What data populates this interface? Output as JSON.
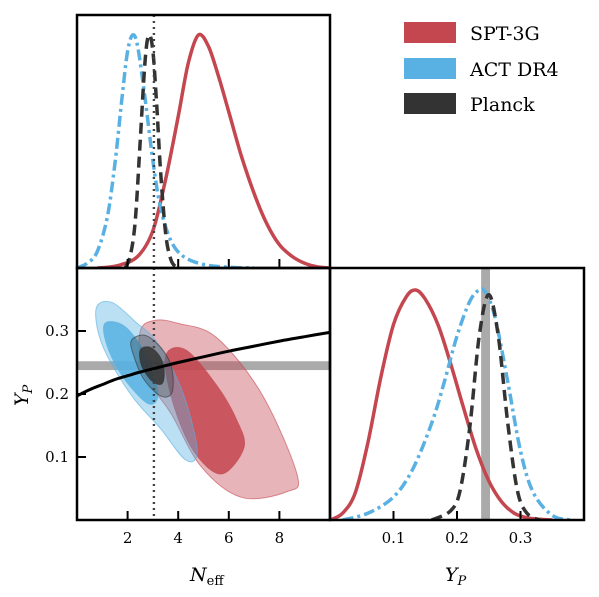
{
  "colors": {
    "spt": "#c4464f",
    "act": "#58b1e2",
    "planck": "#333333",
    "band": "#aaaaaa",
    "bbn": "#000000"
  },
  "legend": {
    "location": "top-right",
    "entries": [
      {
        "label": "SPT-3G",
        "color": "#c4464f"
      },
      {
        "label": "ACT DR4",
        "color": "#58b1e2"
      },
      {
        "label": "Planck",
        "color": "#333333"
      }
    ]
  },
  "chart_data": [
    {
      "panel": "top-left",
      "type": "line",
      "title": "",
      "xlabel": "",
      "ylabel": "",
      "xlim": [
        0,
        10
      ],
      "ylim": [
        0,
        1.05
      ],
      "x_ticks": [
        2,
        4,
        6,
        8
      ],
      "x_tick_labels_shown": false,
      "reference_line": {
        "x": 3.04,
        "style": "dotted"
      },
      "series": [
        {
          "name": "SPT-3G",
          "style": "solid",
          "color": "#c4464f",
          "x": [
            0.8,
            1.6,
            2.4,
            3.0,
            3.5,
            4.0,
            4.4,
            4.8,
            5.2,
            5.6,
            6.0,
            6.5,
            7.0,
            7.5,
            8.0,
            8.5,
            9.0,
            9.5,
            10.0
          ],
          "y": [
            0.0,
            0.01,
            0.05,
            0.16,
            0.38,
            0.65,
            0.88,
            1.0,
            0.95,
            0.82,
            0.67,
            0.48,
            0.32,
            0.19,
            0.1,
            0.05,
            0.02,
            0.005,
            0.0
          ]
        },
        {
          "name": "ACT DR4",
          "style": "dash-dot",
          "color": "#58b1e2",
          "x": [
            0.0,
            0.4,
            0.8,
            1.2,
            1.5,
            1.8,
            2.0,
            2.2,
            2.4,
            2.7,
            3.0,
            3.3,
            3.7,
            4.2,
            5.0,
            6.0,
            7.0
          ],
          "y": [
            0.0,
            0.02,
            0.07,
            0.22,
            0.45,
            0.75,
            0.93,
            1.0,
            0.95,
            0.72,
            0.46,
            0.26,
            0.12,
            0.05,
            0.015,
            0.003,
            0.0
          ]
        },
        {
          "name": "Planck",
          "style": "dashed",
          "color": "#333333",
          "x": [
            1.9,
            2.1,
            2.3,
            2.5,
            2.7,
            2.85,
            3.0,
            3.15,
            3.3,
            3.5,
            3.7,
            3.9,
            4.1
          ],
          "y": [
            0.0,
            0.05,
            0.2,
            0.55,
            0.9,
            1.0,
            0.93,
            0.7,
            0.42,
            0.15,
            0.04,
            0.005,
            0.0
          ]
        }
      ]
    },
    {
      "panel": "bottom-left",
      "type": "contour",
      "title": "",
      "xlabel": "N_eff",
      "xlabel_main": "N",
      "xlabel_sub": "eff",
      "ylabel": "Y_P",
      "ylabel_main": "Y",
      "ylabel_sub": "P",
      "xlim": [
        0,
        10
      ],
      "ylim": [
        0,
        0.4
      ],
      "x_ticks": [
        2,
        4,
        6,
        8
      ],
      "x_tick_labels": [
        "2",
        "4",
        "6",
        "8"
      ],
      "y_ticks": [
        0.1,
        0.2,
        0.3
      ],
      "y_tick_labels": [
        "0.1",
        "0.2",
        "0.3"
      ],
      "reference_line": {
        "x": 3.04,
        "style": "dotted"
      },
      "horizontal_band": {
        "y": 0.245,
        "half_width": 0.007
      },
      "bbn_curve": {
        "x": [
          0.0,
          0.5,
          1.0,
          1.5,
          2.0,
          2.5,
          3.0,
          3.5,
          4.0,
          5.0,
          6.0,
          7.0,
          8.0,
          9.0,
          10.0
        ],
        "y": [
          0.197,
          0.207,
          0.215,
          0.223,
          0.229,
          0.235,
          0.24,
          0.245,
          0.25,
          0.259,
          0.268,
          0.276,
          0.284,
          0.291,
          0.298
        ]
      },
      "contours": [
        {
          "name": "SPT-3G",
          "level": "95%",
          "color": "#c4464f",
          "opacity": 0.4,
          "x": [
            2.5,
            3.1,
            4.0,
            5.5,
            7.3,
            8.7,
            8.3,
            6.5,
            4.9,
            3.7,
            2.6
          ],
          "y": [
            0.3,
            0.317,
            0.312,
            0.29,
            0.2,
            0.072,
            0.045,
            0.036,
            0.085,
            0.17,
            0.235
          ]
        },
        {
          "name": "SPT-3G",
          "level": "68%",
          "color": "#c4464f",
          "opacity": 0.85,
          "x": [
            3.5,
            4.3,
            5.5,
            6.3,
            6.6,
            5.7,
            4.6,
            3.8
          ],
          "y": [
            0.26,
            0.27,
            0.215,
            0.16,
            0.115,
            0.073,
            0.11,
            0.185
          ]
        },
        {
          "name": "ACT DR4",
          "level": "95%",
          "color": "#58b1e2",
          "opacity": 0.4,
          "x": [
            0.8,
            1.4,
            2.3,
            3.2,
            4.2,
            4.75,
            4.3,
            3.3,
            2.2,
            1.2,
            0.8
          ],
          "y": [
            0.34,
            0.345,
            0.315,
            0.28,
            0.2,
            0.11,
            0.095,
            0.145,
            0.195,
            0.26,
            0.305
          ]
        },
        {
          "name": "ACT DR4",
          "level": "68%",
          "color": "#58b1e2",
          "opacity": 0.85,
          "x": [
            1.1,
            1.9,
            2.75,
            3.2,
            2.8,
            1.85,
            1.2
          ],
          "y": [
            0.312,
            0.307,
            0.26,
            0.2,
            0.185,
            0.225,
            0.275
          ]
        },
        {
          "name": "Planck",
          "level": "95%",
          "color": "#333333",
          "opacity": 0.3,
          "x": [
            2.15,
            2.7,
            3.35,
            3.75,
            3.75,
            3.3,
            2.65,
            2.25
          ],
          "y": [
            0.285,
            0.293,
            0.272,
            0.24,
            0.202,
            0.197,
            0.223,
            0.26
          ]
        },
        {
          "name": "Planck",
          "level": "68%",
          "color": "#333333",
          "opacity": 0.85,
          "x": [
            2.5,
            2.9,
            3.3,
            3.45,
            3.35,
            2.95,
            2.55
          ],
          "y": [
            0.27,
            0.274,
            0.258,
            0.235,
            0.216,
            0.221,
            0.245
          ]
        }
      ]
    },
    {
      "panel": "bottom-right",
      "type": "line",
      "title": "",
      "xlabel": "Y_P",
      "xlabel_main": "Y",
      "xlabel_sub": "P",
      "ylabel": "",
      "xlim": [
        0,
        0.4
      ],
      "ylim": [
        0,
        1.05
      ],
      "x_ticks": [
        0.1,
        0.2,
        0.3
      ],
      "x_tick_labels": [
        "0.1",
        "0.2",
        "0.3"
      ],
      "vertical_band": {
        "x": 0.245,
        "half_width": 0.007
      },
      "series": [
        {
          "name": "SPT-3G",
          "style": "solid",
          "color": "#c4464f",
          "x": [
            0.0,
            0.02,
            0.04,
            0.06,
            0.08,
            0.1,
            0.12,
            0.135,
            0.15,
            0.17,
            0.19,
            0.21,
            0.23,
            0.25,
            0.27,
            0.29,
            0.31,
            0.33,
            0.35
          ],
          "y": [
            0.0,
            0.03,
            0.12,
            0.34,
            0.62,
            0.85,
            0.97,
            1.0,
            0.96,
            0.85,
            0.68,
            0.49,
            0.31,
            0.17,
            0.08,
            0.03,
            0.01,
            0.003,
            0.0
          ]
        },
        {
          "name": "ACT DR4",
          "style": "dash-dot",
          "color": "#58b1e2",
          "x": [
            0.02,
            0.06,
            0.1,
            0.13,
            0.16,
            0.18,
            0.2,
            0.22,
            0.235,
            0.245,
            0.26,
            0.28,
            0.3,
            0.32,
            0.35,
            0.38
          ],
          "y": [
            0.0,
            0.03,
            0.1,
            0.22,
            0.42,
            0.6,
            0.8,
            0.95,
            1.0,
            0.99,
            0.88,
            0.6,
            0.3,
            0.12,
            0.02,
            0.0
          ]
        },
        {
          "name": "Planck",
          "style": "dashed",
          "color": "#333333",
          "x": [
            0.16,
            0.19,
            0.205,
            0.22,
            0.235,
            0.25,
            0.265,
            0.28,
            0.295,
            0.31,
            0.33
          ],
          "y": [
            0.0,
            0.04,
            0.13,
            0.4,
            0.8,
            0.98,
            0.8,
            0.42,
            0.13,
            0.03,
            0.0
          ]
        }
      ]
    }
  ]
}
